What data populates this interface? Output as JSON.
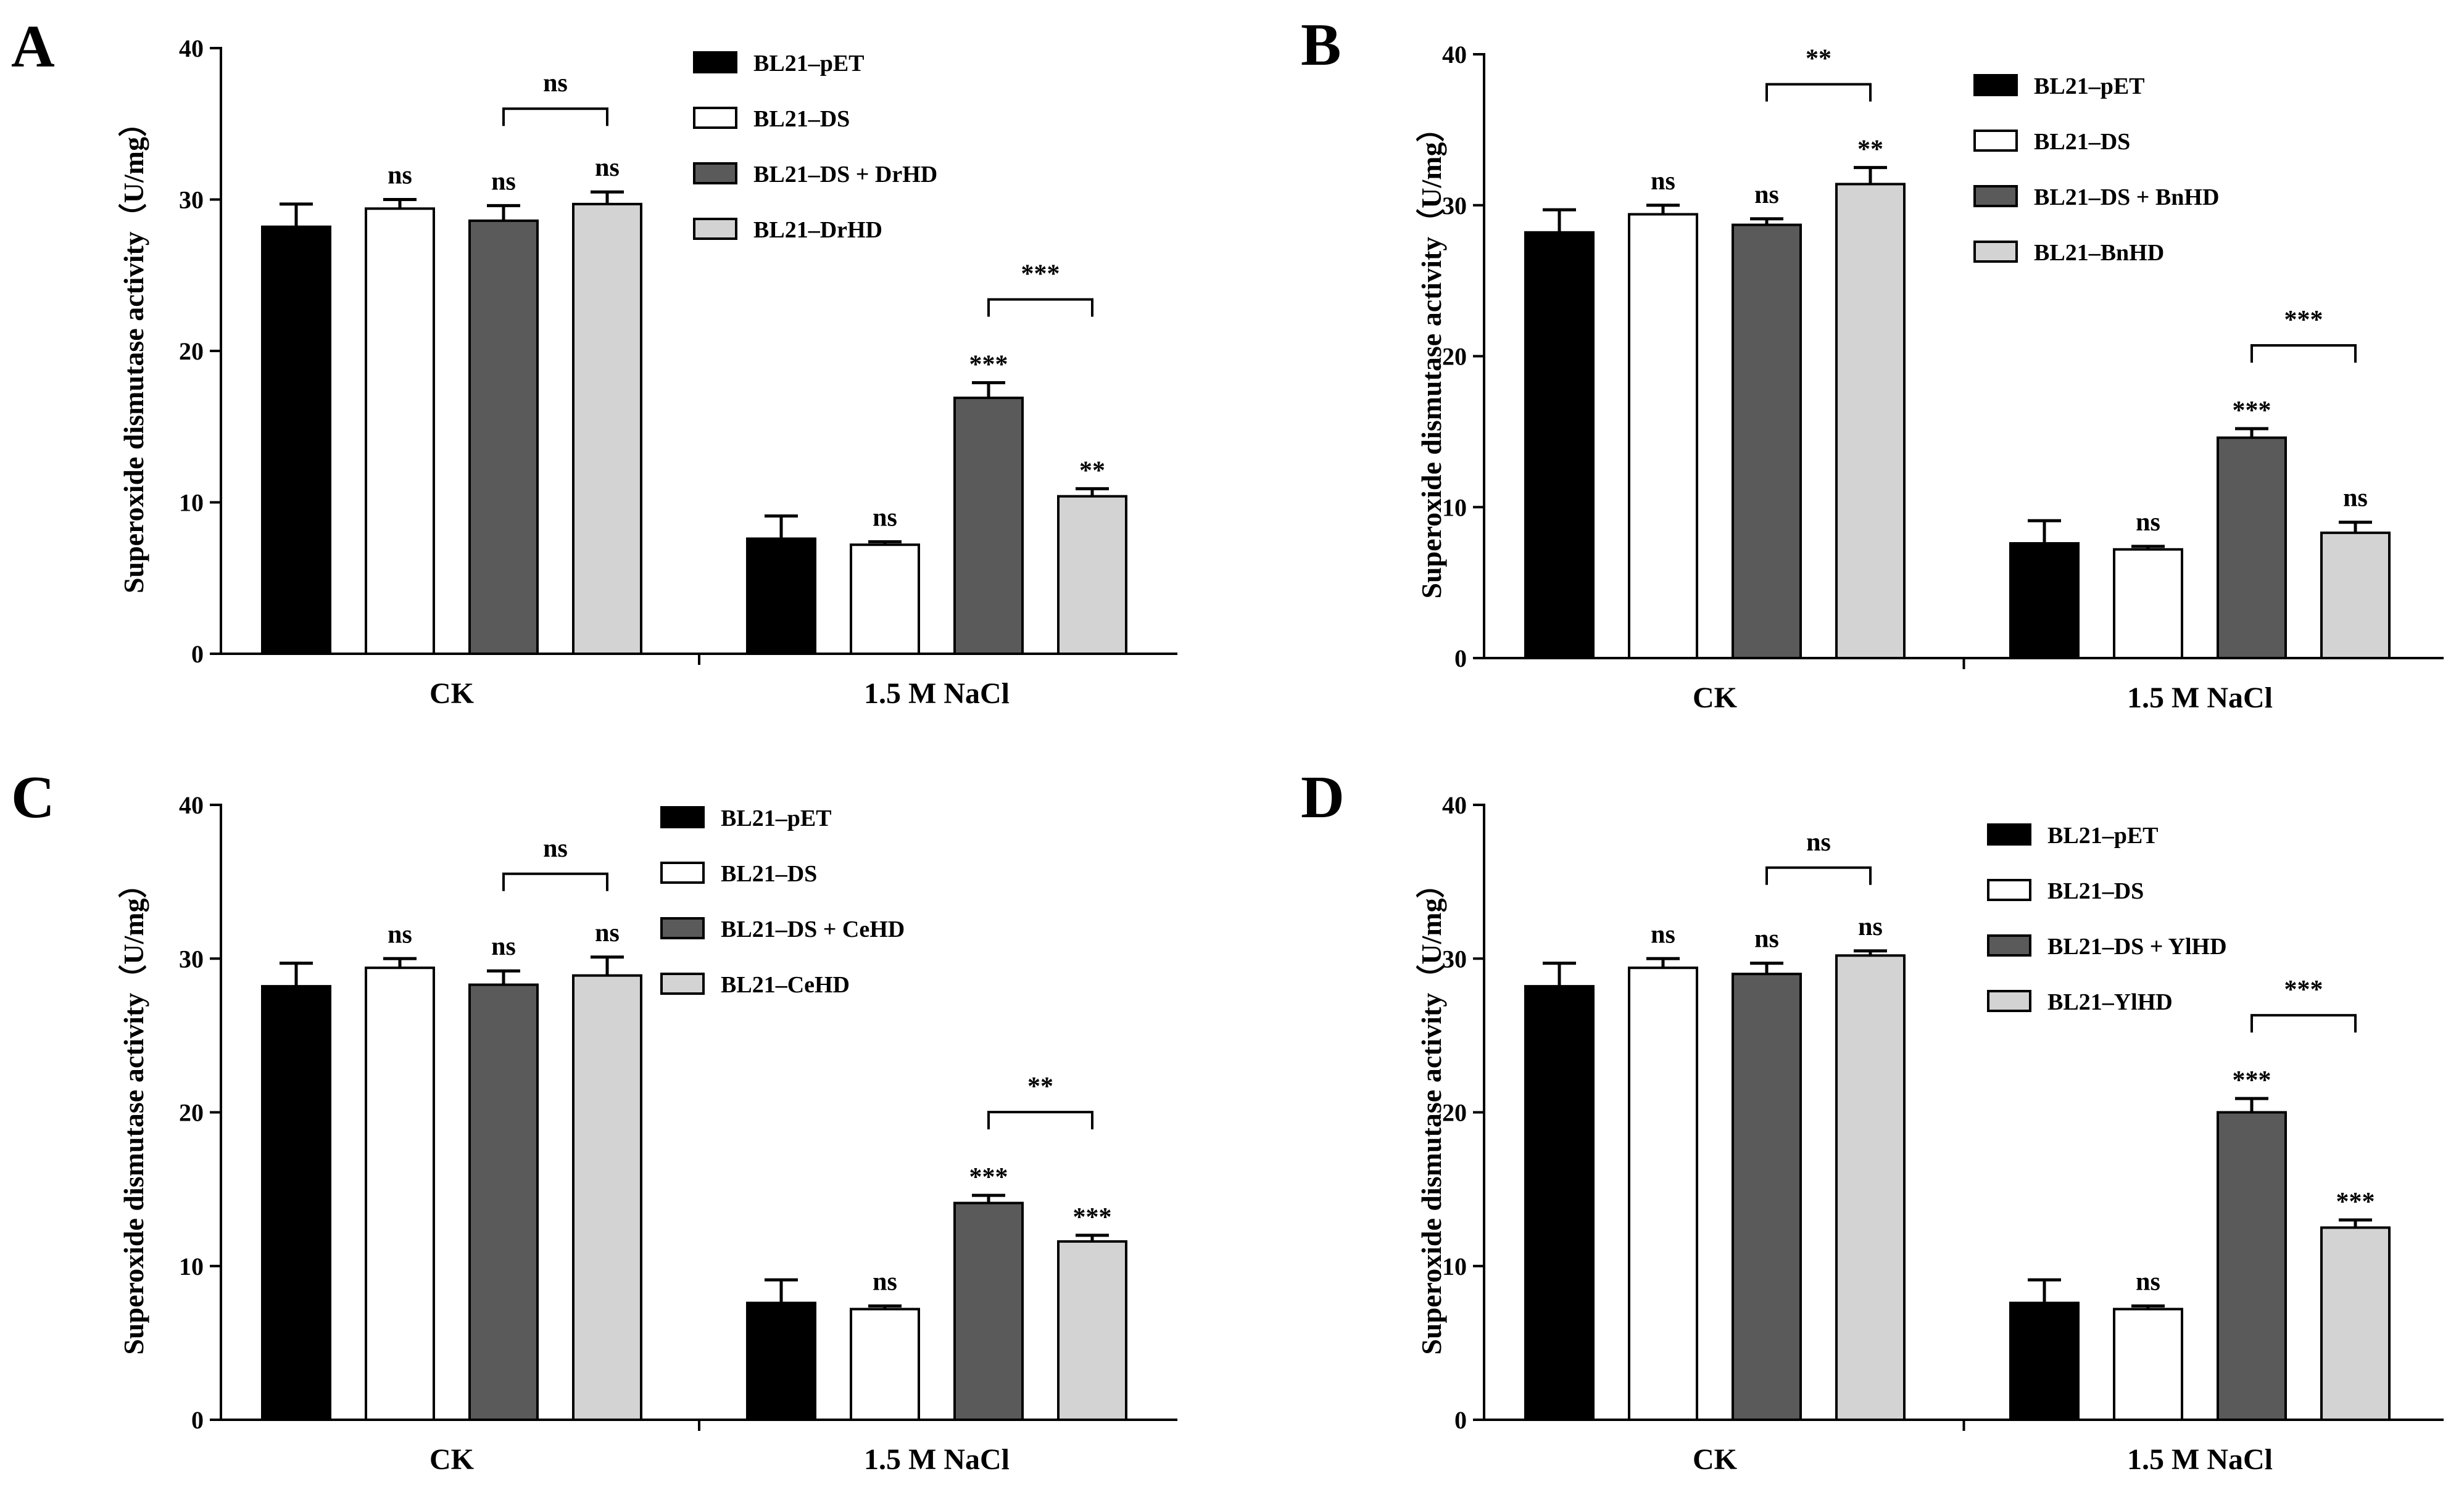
{
  "chart_data": [
    {
      "type": "bar",
      "panel_label": "A",
      "ylabel": "Superoxide dismutase activity（U/mg）",
      "ylim": [
        0,
        40
      ],
      "yticks": [
        "0",
        "10",
        "20",
        "30",
        "40"
      ],
      "categories": [
        "CK",
        "1.5 M NaCl"
      ],
      "series": [
        {
          "name": "BL21–pET",
          "color": "#000000",
          "values": [
            28.2,
            7.6
          ],
          "errors": [
            1.5,
            1.5
          ]
        },
        {
          "name": "BL21–DS",
          "color": "#ffffff",
          "values": [
            29.4,
            7.2
          ],
          "errors": [
            0.6,
            0.2
          ]
        },
        {
          "name": "BL21–DS + DrHD",
          "color": "#5a5a5a",
          "values": [
            28.6,
            16.9
          ],
          "errors": [
            1.0,
            1.0
          ]
        },
        {
          "name": "BL21–DrHD",
          "color": "#d3d3d3",
          "values": [
            29.7,
            10.4
          ],
          "errors": [
            0.8,
            0.5
          ]
        }
      ],
      "significance": [
        [
          "",
          "ns",
          "ns",
          "ns"
        ],
        [
          "",
          "ns",
          "***",
          "**"
        ]
      ],
      "brackets": [
        {
          "category": 0,
          "from": 2,
          "to": 3,
          "label": "ns"
        },
        {
          "category": 1,
          "from": 2,
          "to": 3,
          "label": "***"
        }
      ]
    },
    {
      "type": "bar",
      "panel_label": "B",
      "ylabel": "Superoxide dismutase activity（U/mg）",
      "ylim": [
        0,
        40
      ],
      "yticks": [
        "0",
        "10",
        "20",
        "30",
        "40"
      ],
      "categories": [
        "CK",
        "1.5 M NaCl"
      ],
      "series": [
        {
          "name": "BL21–pET",
          "color": "#000000",
          "values": [
            28.2,
            7.6
          ],
          "errors": [
            1.5,
            1.5
          ]
        },
        {
          "name": "BL21–DS",
          "color": "#ffffff",
          "values": [
            29.4,
            7.2
          ],
          "errors": [
            0.6,
            0.2
          ]
        },
        {
          "name": "BL21–DS + BnHD",
          "color": "#5a5a5a",
          "values": [
            28.7,
            14.6
          ],
          "errors": [
            0.4,
            0.6
          ]
        },
        {
          "name": "BL21–BnHD",
          "color": "#d3d3d3",
          "values": [
            31.4,
            8.3
          ],
          "errors": [
            1.1,
            0.7
          ]
        }
      ],
      "significance": [
        [
          "",
          "ns",
          "ns",
          "**"
        ],
        [
          "",
          "ns",
          "***",
          "ns"
        ]
      ],
      "brackets": [
        {
          "category": 0,
          "from": 2,
          "to": 3,
          "label": "**"
        },
        {
          "category": 1,
          "from": 2,
          "to": 3,
          "label": "***"
        }
      ]
    },
    {
      "type": "bar",
      "panel_label": "C",
      "ylabel": "Superoxide dismutase activity（U/mg）",
      "ylim": [
        0,
        40
      ],
      "yticks": [
        "0",
        "10",
        "20",
        "30",
        "40"
      ],
      "categories": [
        "CK",
        "1.5 M NaCl"
      ],
      "series": [
        {
          "name": "BL21–pET",
          "color": "#000000",
          "values": [
            28.2,
            7.6
          ],
          "errors": [
            1.5,
            1.5
          ]
        },
        {
          "name": "BL21–DS",
          "color": "#ffffff",
          "values": [
            29.4,
            7.2
          ],
          "errors": [
            0.6,
            0.2
          ]
        },
        {
          "name": "BL21–DS + CeHD",
          "color": "#5a5a5a",
          "values": [
            28.3,
            14.1
          ],
          "errors": [
            0.9,
            0.5
          ]
        },
        {
          "name": "BL21–CeHD",
          "color": "#d3d3d3",
          "values": [
            28.9,
            11.6
          ],
          "errors": [
            1.2,
            0.4
          ]
        }
      ],
      "significance": [
        [
          "",
          "ns",
          "ns",
          "ns"
        ],
        [
          "",
          "ns",
          "***",
          "***"
        ]
      ],
      "brackets": [
        {
          "category": 0,
          "from": 2,
          "to": 3,
          "label": "ns"
        },
        {
          "category": 1,
          "from": 2,
          "to": 3,
          "label": "**"
        }
      ]
    },
    {
      "type": "bar",
      "panel_label": "D",
      "ylabel": "Superoxide dismutase activity（U/mg）",
      "ylim": [
        0,
        40
      ],
      "yticks": [
        "0",
        "10",
        "20",
        "30",
        "40"
      ],
      "categories": [
        "CK",
        "1.5 M NaCl"
      ],
      "series": [
        {
          "name": "BL21–pET",
          "color": "#000000",
          "values": [
            28.2,
            7.6
          ],
          "errors": [
            1.5,
            1.5
          ]
        },
        {
          "name": "BL21–DS",
          "color": "#ffffff",
          "values": [
            29.4,
            7.2
          ],
          "errors": [
            0.6,
            0.2
          ]
        },
        {
          "name": "BL21–DS + YlHD",
          "color": "#5a5a5a",
          "values": [
            29.0,
            20.0
          ],
          "errors": [
            0.7,
            0.9
          ]
        },
        {
          "name": "BL21–YlHD",
          "color": "#d3d3d3",
          "values": [
            30.2,
            12.5
          ],
          "errors": [
            0.3,
            0.5
          ]
        }
      ],
      "significance": [
        [
          "",
          "ns",
          "ns",
          "ns"
        ],
        [
          "",
          "ns",
          "***",
          "***"
        ]
      ],
      "brackets": [
        {
          "category": 0,
          "from": 2,
          "to": 3,
          "label": "ns"
        },
        {
          "category": 1,
          "from": 2,
          "to": 3,
          "label": "***"
        }
      ]
    }
  ]
}
